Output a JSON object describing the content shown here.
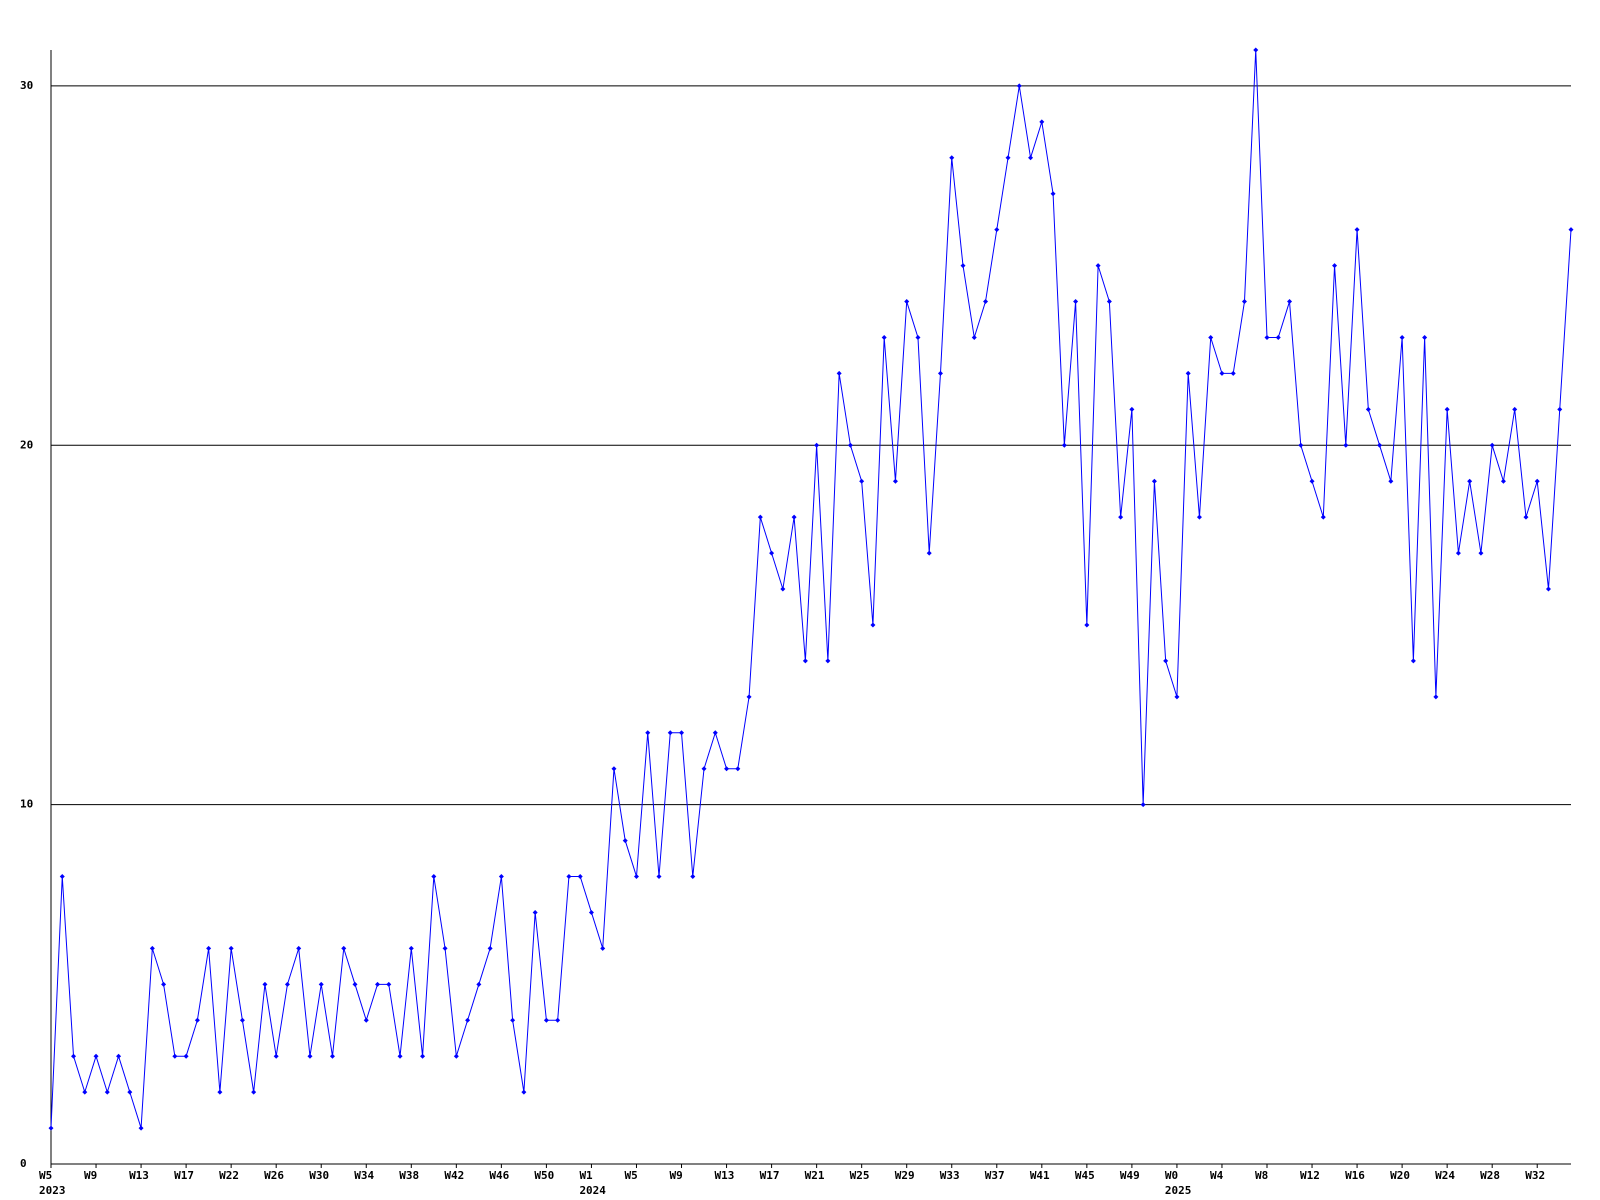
{
  "chart_data": {
    "type": "line",
    "categories": [
      "W5",
      null,
      null,
      null,
      "W9",
      null,
      null,
      null,
      "W13",
      null,
      null,
      null,
      "W17",
      null,
      null,
      null,
      "W22",
      null,
      null,
      null,
      "W26",
      null,
      null,
      null,
      "W30",
      null,
      null,
      null,
      "W34",
      null,
      null,
      null,
      "W38",
      null,
      null,
      null,
      "W42",
      null,
      null,
      null,
      "W46",
      null,
      null,
      null,
      "W50",
      null,
      null,
      null,
      "W1",
      null,
      null,
      null,
      "W5",
      null,
      null,
      null,
      "W9",
      null,
      null,
      null,
      "W13",
      null,
      null,
      null,
      "W17",
      null,
      null,
      null,
      "W21",
      null,
      null,
      null,
      "W25",
      null,
      null,
      null,
      "W29",
      null,
      null,
      null,
      "W33",
      null,
      null,
      null,
      "W37",
      null,
      null,
      null,
      "W41",
      null,
      null,
      null,
      "W45",
      null,
      null,
      null,
      "W49",
      null,
      null,
      null,
      "W0",
      null,
      null,
      null,
      "W4",
      null,
      null,
      null,
      "W8",
      null,
      null,
      null,
      "W12",
      null,
      null,
      null,
      "W16",
      null,
      null,
      null,
      "W20",
      null,
      null,
      null,
      "W24",
      null,
      null,
      null,
      "W28",
      null,
      null,
      null,
      "W32",
      null,
      null,
      null
    ],
    "category_years": [
      "2023",
      null,
      null,
      null,
      null,
      null,
      null,
      null,
      null,
      null,
      null,
      null,
      null,
      null,
      null,
      null,
      null,
      null,
      null,
      null,
      null,
      null,
      null,
      null,
      null,
      null,
      null,
      null,
      null,
      null,
      null,
      null,
      null,
      null,
      null,
      null,
      null,
      null,
      null,
      null,
      null,
      null,
      null,
      null,
      null,
      null,
      null,
      null,
      "2024",
      null,
      null,
      null,
      null,
      null,
      null,
      null,
      null,
      null,
      null,
      null,
      null,
      null,
      null,
      null,
      null,
      null,
      null,
      null,
      null,
      null,
      null,
      null,
      null,
      null,
      null,
      null,
      null,
      null,
      null,
      null,
      null,
      null,
      null,
      null,
      null,
      null,
      null,
      null,
      null,
      null,
      null,
      null,
      null,
      null,
      null,
      null,
      null,
      null,
      null,
      null,
      "2025",
      null,
      null,
      null,
      null,
      null,
      null,
      null,
      null,
      null,
      null,
      null,
      null,
      null,
      null,
      null,
      null,
      null,
      null,
      null,
      null,
      null,
      null,
      null,
      null,
      null,
      null,
      null,
      null,
      null,
      null,
      null,
      null,
      null,
      null,
      null
    ],
    "series": [
      {
        "color": "#0000ff",
        "values": [
          1,
          8,
          3,
          2,
          3,
          2,
          3,
          2,
          1,
          6,
          5,
          3,
          3,
          4,
          6,
          2,
          6,
          4,
          2,
          5,
          3,
          5,
          6,
          3,
          5,
          3,
          6,
          5,
          4,
          5,
          5,
          3,
          6,
          3,
          8,
          6,
          3,
          4,
          5,
          6,
          8,
          4,
          2,
          7,
          4,
          4,
          8,
          8,
          7,
          6,
          11,
          9,
          8,
          12,
          8,
          12,
          12,
          8,
          11,
          12,
          11,
          11,
          13,
          18,
          17,
          16,
          18,
          14,
          20,
          14,
          22,
          20,
          19,
          15,
          23,
          19,
          24,
          23,
          17,
          22,
          28,
          25,
          23,
          24,
          26,
          28,
          30,
          28,
          29,
          27,
          20,
          24,
          15,
          25,
          24,
          18,
          21,
          10,
          19,
          14,
          13,
          22,
          18,
          23,
          22,
          22,
          24,
          31,
          23,
          23,
          24,
          20,
          19,
          18,
          25,
          20,
          26,
          21,
          20,
          19,
          23,
          14,
          23,
          13,
          21,
          17,
          19,
          17,
          20,
          19,
          21,
          18,
          19,
          16,
          21,
          26
        ]
      }
    ],
    "ylim": [
      0,
      31
    ],
    "yticks": [
      0,
      10,
      20,
      30
    ],
    "grid": true
  }
}
